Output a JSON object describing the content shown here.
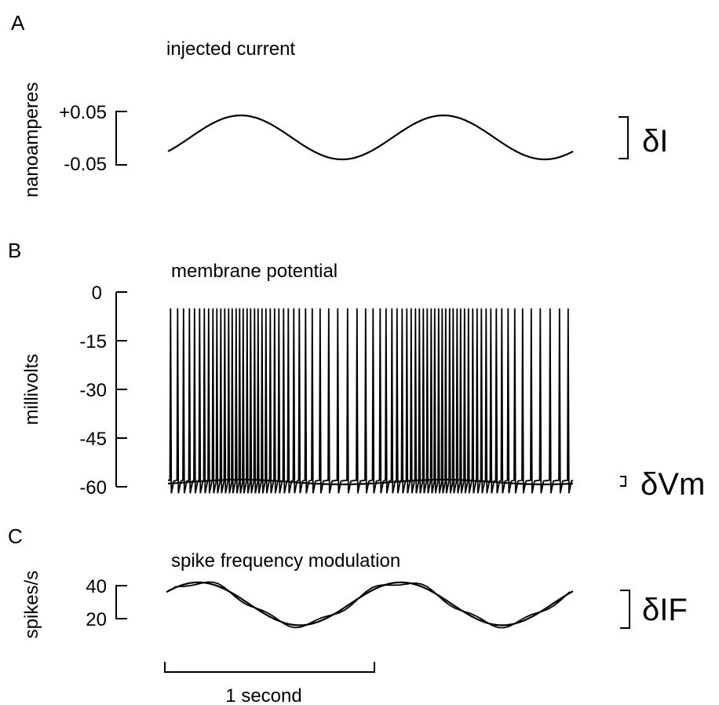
{
  "chart_data": [
    {
      "panel": "A",
      "type": "line",
      "title": "injected current",
      "ylabel": "nanoamperes",
      "yticks": [
        "+0.05",
        "-0.05"
      ],
      "ylim": [
        -0.05,
        0.05
      ],
      "delta_label": "δI",
      "series": [
        {
          "x_seconds": [
            0,
            0.25,
            0.5,
            0.75,
            1.0,
            1.25,
            1.5,
            1.75,
            2.0
          ],
          "values": [
            -0.017,
            0.05,
            0.013,
            -0.05,
            -0.013,
            0.05,
            0.013,
            -0.05,
            -0.017
          ]
        }
      ],
      "waveform": "sinusoid",
      "cycles": 2,
      "x_range_seconds": [
        0,
        1.95
      ]
    },
    {
      "panel": "B",
      "type": "line",
      "title": "membrane potential",
      "ylabel": "millivolts",
      "yticks": [
        "0",
        "-15",
        "-30",
        "-45",
        "-60"
      ],
      "ylim": [
        -60,
        0
      ],
      "delta_label": "δVm",
      "spike_peak_mv": -5,
      "baseline_mv": -58,
      "trough_mv": -62,
      "spike_count": 76,
      "x_range_seconds": [
        0,
        1.95
      ]
    },
    {
      "panel": "C",
      "type": "line",
      "title": "spike frequency modulation",
      "ylabel": "spikes/s",
      "yticks": [
        "40",
        "20"
      ],
      "ylim": [
        20,
        40
      ],
      "delta_label": "δIF",
      "series": [
        {
          "x_seconds": [
            0,
            0.25,
            0.5,
            0.75,
            1.0,
            1.25,
            1.5,
            1.75,
            2.0
          ],
          "values": [
            32,
            42,
            32,
            16,
            27,
            42,
            32,
            16,
            32
          ]
        }
      ],
      "x_range_seconds": [
        0,
        1.95
      ]
    }
  ],
  "scale_bar": {
    "label": "1 second",
    "seconds": 1
  }
}
